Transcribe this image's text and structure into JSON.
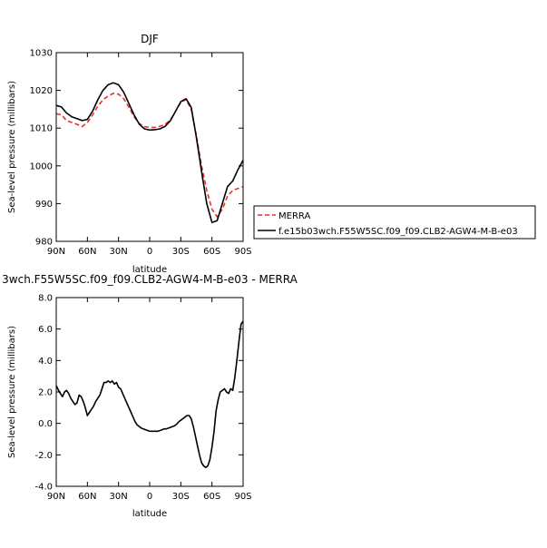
{
  "chart_data": [
    {
      "type": "line",
      "title": "DJF",
      "xlabel": "latitude",
      "ylabel": "Sea-level pressure (millibars)",
      "xlim": [
        -90,
        90
      ],
      "ylim": [
        980,
        1030
      ],
      "x_tick_values": [
        -90,
        -60,
        -30,
        0,
        30,
        60,
        90
      ],
      "x_tick_labels": [
        "90N",
        "60N",
        "30N",
        "0",
        "30S",
        "60S",
        "90S"
      ],
      "y_tick_values": [
        980,
        990,
        1000,
        1010,
        1020,
        1030
      ],
      "y_tick_labels": [
        "980",
        "990",
        "1000",
        "1010",
        "1020",
        "1030"
      ],
      "grid": false,
      "legend_position": "right",
      "series": [
        {
          "name": "MERRA",
          "color": "#e8312f",
          "dash": "dashed",
          "x": [
            -90,
            -85,
            -80,
            -75,
            -70,
            -65,
            -60,
            -55,
            -50,
            -45,
            -40,
            -35,
            -30,
            -25,
            -20,
            -15,
            -10,
            -5,
            0,
            5,
            10,
            15,
            20,
            25,
            30,
            35,
            40,
            45,
            50,
            55,
            60,
            65,
            70,
            75,
            80,
            85,
            90
          ],
          "y": [
            1013.8,
            1013.5,
            1012.0,
            1011.5,
            1011.0,
            1010.4,
            1011.5,
            1013.5,
            1015.8,
            1017.5,
            1018.5,
            1019.2,
            1019.0,
            1017.8,
            1015.5,
            1013.0,
            1011.2,
            1010.4,
            1010.2,
            1010.2,
            1010.5,
            1011.0,
            1012.2,
            1014.5,
            1016.8,
            1017.6,
            1015.0,
            1008.0,
            1000.0,
            993.5,
            988.5,
            986.5,
            988.5,
            992.0,
            993.5,
            994.0,
            994.5
          ]
        },
        {
          "name": "f.e15b03wch.F55W5SC.f09_f09.CLB2-AGW4-M-B-e03",
          "color": "#000000",
          "dash": "solid",
          "x": [
            -90,
            -85,
            -80,
            -75,
            -70,
            -65,
            -60,
            -55,
            -50,
            -45,
            -40,
            -35,
            -30,
            -25,
            -20,
            -15,
            -10,
            -5,
            0,
            5,
            10,
            15,
            20,
            25,
            30,
            35,
            40,
            45,
            50,
            55,
            60,
            65,
            70,
            75,
            80,
            85,
            90
          ],
          "y": [
            1016.0,
            1015.6,
            1014.0,
            1013.0,
            1012.5,
            1012.0,
            1012.3,
            1014.5,
            1017.5,
            1020.0,
            1021.5,
            1022.0,
            1021.5,
            1019.5,
            1016.5,
            1013.5,
            1011.0,
            1009.8,
            1009.5,
            1009.6,
            1009.8,
            1010.5,
            1012.0,
            1014.5,
            1017.0,
            1017.8,
            1015.5,
            1007.5,
            998.5,
            990.0,
            985.0,
            985.5,
            990.0,
            994.5,
            996.0,
            999.0,
            1001.5
          ]
        }
      ]
    },
    {
      "type": "line",
      "title": "3wch.F55W5SC.f09_f09.CLB2-AGW4-M-B-e03 - MERRA",
      "xlabel": "latitude",
      "ylabel": "Sea-level pressure (millibars)",
      "xlim": [
        -90,
        90
      ],
      "ylim": [
        -4,
        8
      ],
      "x_tick_values": [
        -90,
        -60,
        -30,
        0,
        30,
        60,
        90
      ],
      "x_tick_labels": [
        "90N",
        "60N",
        "30N",
        "0",
        "30S",
        "60S",
        "90S"
      ],
      "y_tick_values": [
        -4,
        -2,
        0,
        2,
        4,
        6,
        8
      ],
      "y_tick_labels": [
        "-4.0",
        "-2.0",
        "0.0",
        "2.0",
        "4.0",
        "6.0",
        "8.0"
      ],
      "grid": false,
      "series": [
        {
          "color": "#000000",
          "dash": "solid",
          "x": [
            -90,
            -87,
            -84,
            -82,
            -80,
            -78,
            -76,
            -74,
            -72,
            -70,
            -68,
            -66,
            -64,
            -62,
            -60,
            -58,
            -56,
            -54,
            -52,
            -50,
            -48,
            -46,
            -44,
            -42,
            -40,
            -38,
            -36,
            -34,
            -32,
            -30,
            -28,
            -26,
            -24,
            -22,
            -20,
            -18,
            -16,
            -14,
            -12,
            -10,
            -8,
            -6,
            -4,
            -2,
            0,
            2,
            4,
            6,
            8,
            10,
            12,
            14,
            16,
            18,
            20,
            22,
            24,
            26,
            28,
            30,
            32,
            34,
            36,
            38,
            40,
            42,
            44,
            46,
            48,
            50,
            52,
            54,
            56,
            58,
            60,
            62,
            64,
            66,
            68,
            70,
            72,
            74,
            76,
            78,
            80,
            82,
            84,
            86,
            88,
            90
          ],
          "y": [
            2.4,
            2.0,
            1.7,
            2.0,
            2.1,
            1.9,
            1.6,
            1.4,
            1.2,
            1.3,
            1.8,
            1.7,
            1.4,
            1.0,
            0.5,
            0.7,
            0.9,
            1.1,
            1.4,
            1.6,
            1.8,
            2.2,
            2.6,
            2.6,
            2.7,
            2.6,
            2.7,
            2.5,
            2.6,
            2.3,
            2.2,
            1.9,
            1.6,
            1.3,
            1.0,
            0.7,
            0.4,
            0.1,
            -0.1,
            -0.2,
            -0.3,
            -0.35,
            -0.4,
            -0.45,
            -0.5,
            -0.5,
            -0.5,
            -0.5,
            -0.5,
            -0.45,
            -0.4,
            -0.35,
            -0.35,
            -0.3,
            -0.25,
            -0.2,
            -0.15,
            -0.05,
            0.1,
            0.2,
            0.3,
            0.4,
            0.5,
            0.5,
            0.3,
            -0.2,
            -0.8,
            -1.4,
            -2.0,
            -2.5,
            -2.7,
            -2.8,
            -2.7,
            -2.3,
            -1.5,
            -0.5,
            0.8,
            1.5,
            2.0,
            2.1,
            2.2,
            2.0,
            1.9,
            2.2,
            2.1,
            2.9,
            4.0,
            5.2,
            6.3,
            6.5
          ]
        }
      ]
    }
  ]
}
